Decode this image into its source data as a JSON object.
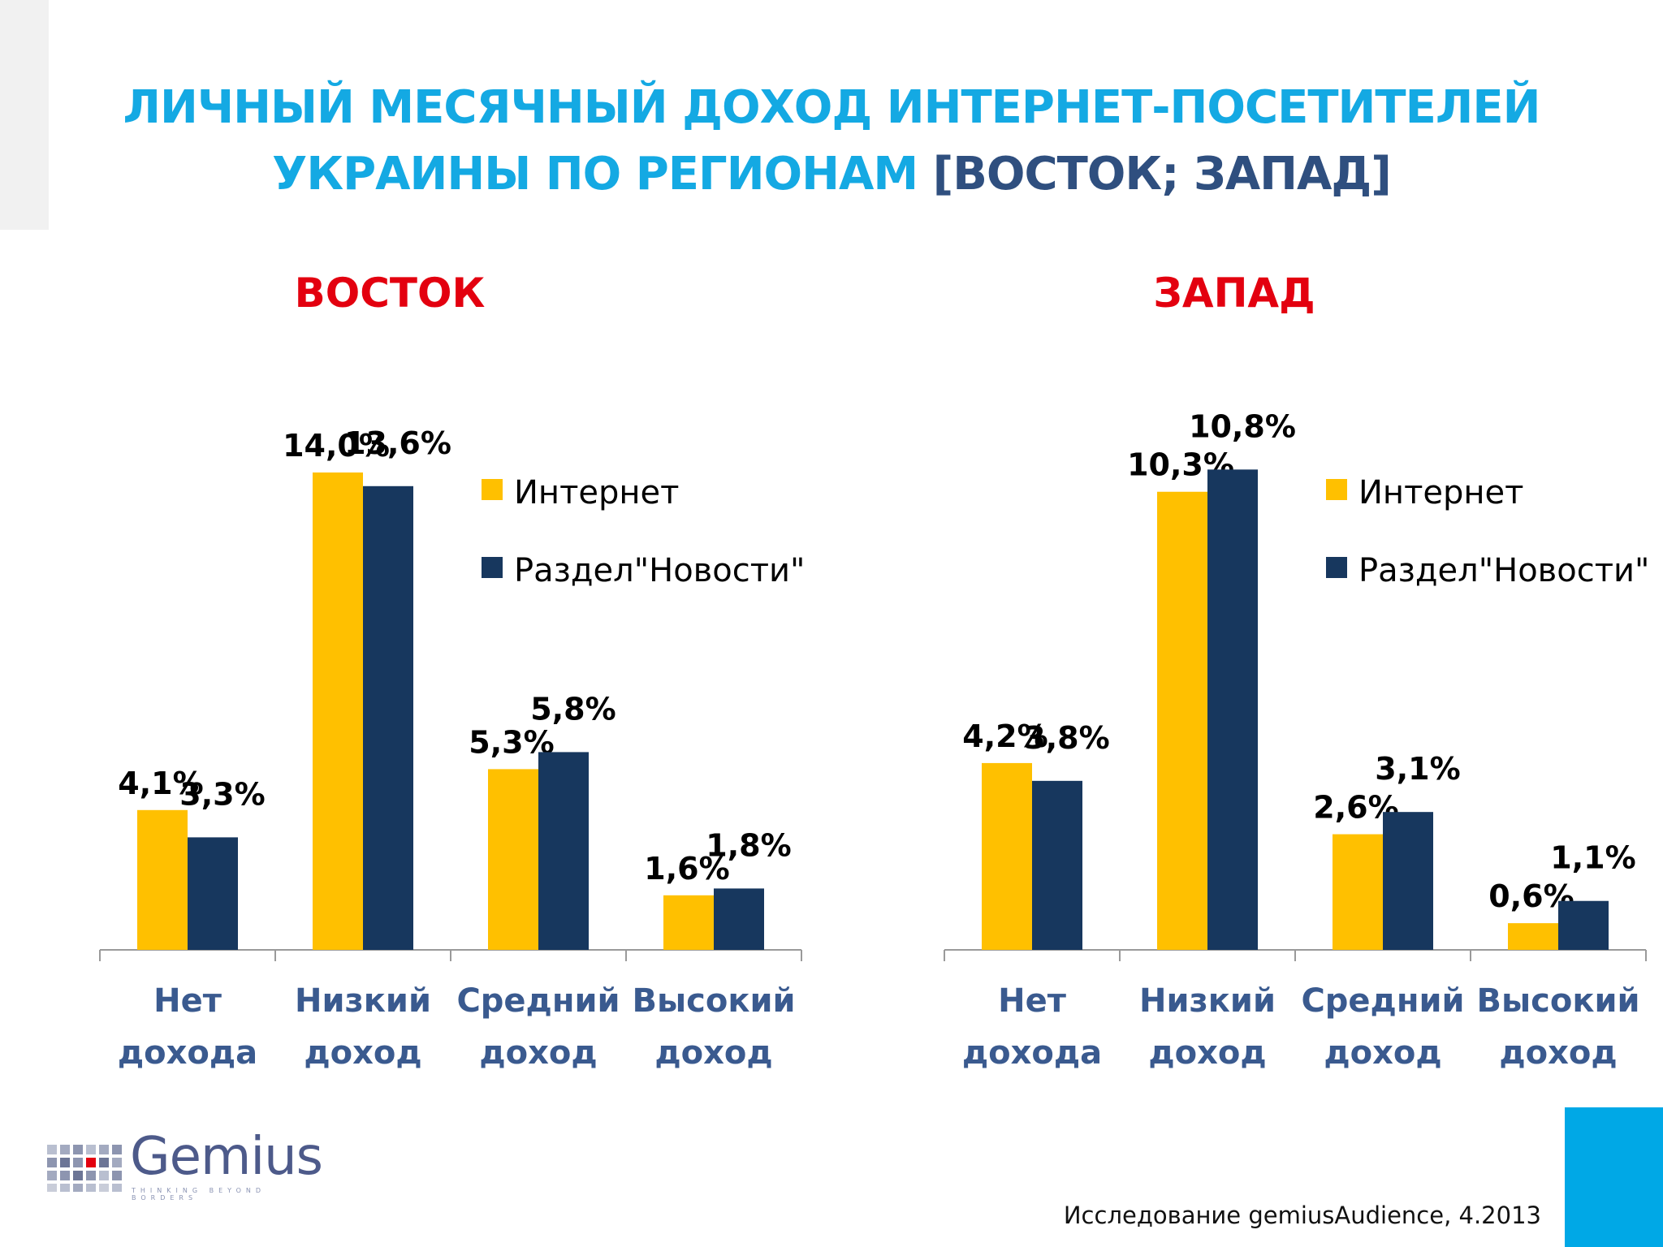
{
  "title": {
    "line1": "ЛИЧНЫЙ МЕСЯЧНЫЙ ДОХОД ИНТЕРНЕТ-ПОСЕТИТЕЛЕЙ",
    "line2_main": "УКРАИНЫ ПО РЕГИОНАМ ",
    "line2_bracket": "[ВОСТОК; ЗАПАД]"
  },
  "colors": {
    "title": "#14a9e3",
    "title_bracket": "#2f4f7f",
    "chart_title": "#e3000f",
    "category_label": "#3a5a8f",
    "series_internet": "#ffc000",
    "series_news": "#17375e",
    "accent": "#00a8e6"
  },
  "chart_data": [
    {
      "type": "bar",
      "title": "ВОСТОК",
      "categories": [
        [
          "Нет",
          "дохода"
        ],
        [
          "Низкий",
          "доход"
        ],
        [
          "Средний",
          "доход"
        ],
        [
          "Высокий",
          "доход"
        ]
      ],
      "series": [
        {
          "name": "Интернет",
          "values": [
            4.1,
            14.0,
            5.3,
            1.6
          ],
          "labels": [
            "4,1%",
            "14,0%",
            "5,3%",
            "1,6%"
          ]
        },
        {
          "name": "Раздел\"Новости\"",
          "values": [
            3.3,
            13.6,
            5.8,
            1.8
          ],
          "labels": [
            "3,3%",
            "13,6%",
            "5,8%",
            "1,8%"
          ]
        }
      ],
      "ylim": [
        0,
        15
      ],
      "grid": false,
      "legend": "right"
    },
    {
      "type": "bar",
      "title": "ЗАПАД",
      "categories": [
        [
          "Нет",
          "дохода"
        ],
        [
          "Низкий",
          "доход"
        ],
        [
          "Средний",
          "доход"
        ],
        [
          "Высокий",
          "доход"
        ]
      ],
      "series": [
        {
          "name": "Интернет",
          "values": [
            4.2,
            10.3,
            2.6,
            0.6
          ],
          "labels": [
            "4,2%",
            "10,3%",
            "2,6%",
            "0,6%"
          ]
        },
        {
          "name": "Раздел\"Новости\"",
          "values": [
            3.8,
            10.8,
            3.1,
            1.1
          ],
          "labels": [
            "3,8%",
            "10,8%",
            "3,1%",
            "1,1%"
          ]
        }
      ],
      "ylim": [
        0,
        11.5
      ],
      "grid": false,
      "legend": "right"
    }
  ],
  "logo": {
    "word": "Gemius",
    "tagline": "THINKING BEYOND BORDERS"
  },
  "footer": {
    "source": "Исследование gemiusAudience, 4.2013"
  }
}
